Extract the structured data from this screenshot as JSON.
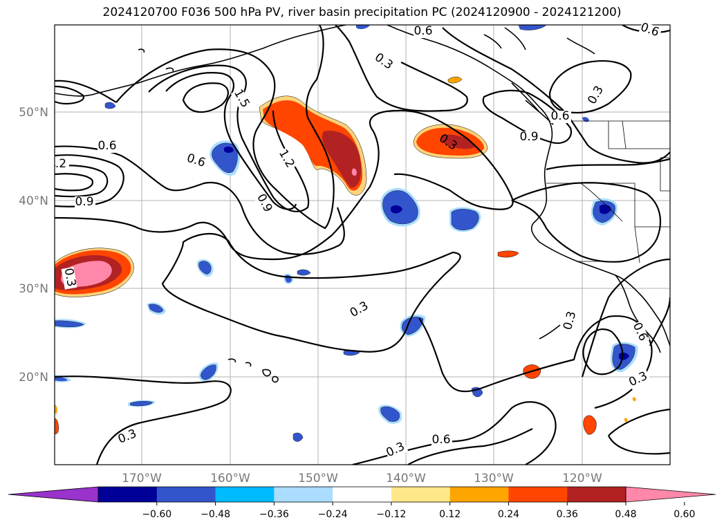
{
  "title": "2024120700 F036 500 hPa PV, river basin precipitation PC (2024120900 - 2024121200)",
  "map": {
    "lon_labels": [
      "170°W",
      "160°W",
      "150°W",
      "140°W",
      "130°W",
      "120°W"
    ],
    "lat_labels": [
      "50°N",
      "40°N",
      "30°N",
      "20°N"
    ],
    "contour_labels": [
      "0.3",
      "0.6",
      "0.9",
      "1.2",
      "1.5"
    ]
  },
  "colorbar": {
    "ticks": [
      "−0.60",
      "−0.48",
      "−0.36",
      "−0.24",
      "−0.12",
      "0.12",
      "0.24",
      "0.36",
      "0.48",
      "0.60"
    ],
    "colors": [
      "#9933cc",
      "#000099",
      "#3355cc",
      "#00bbff",
      "#aaddff",
      "#ffffff",
      "#ffe88a",
      "#ffa500",
      "#ff4500",
      "#b22222",
      "#ff88aa"
    ]
  }
}
